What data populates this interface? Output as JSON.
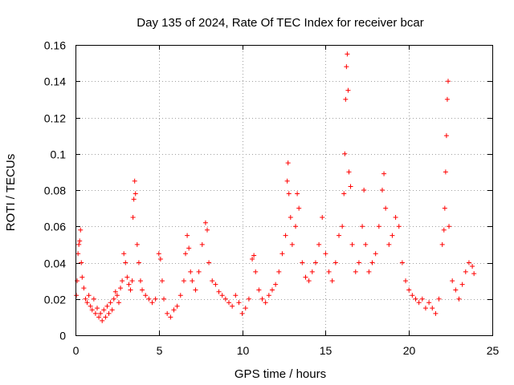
{
  "chart_data": {
    "type": "scatter",
    "title": "Day 135 of 2024, Rate Of TEC Index for receiver bcar",
    "xlabel": "GPS time / hours",
    "ylabel": "ROTI / TECUs",
    "xlim": [
      0,
      25
    ],
    "ylim": [
      0,
      0.16
    ],
    "xticks": [
      0,
      5,
      10,
      15,
      20,
      25
    ],
    "xtick_labels": [
      "0",
      "5",
      "10",
      "15",
      "20",
      "25"
    ],
    "yticks": [
      0,
      0.02,
      0.04,
      0.06,
      0.08,
      0.1,
      0.12,
      0.14,
      0.16
    ],
    "ytick_labels": [
      "0",
      "0.02",
      "0.04",
      "0.06",
      "0.08",
      "0.1",
      "0.12",
      "0.14",
      "0.16"
    ],
    "grid": true,
    "marker": "+",
    "marker_color": "#ff0000",
    "series": [
      {
        "name": "ROTI",
        "points": [
          [
            0.05,
            0.022
          ],
          [
            0.1,
            0.03
          ],
          [
            0.15,
            0.045
          ],
          [
            0.2,
            0.05
          ],
          [
            0.25,
            0.052
          ],
          [
            0.3,
            0.058
          ],
          [
            0.35,
            0.04
          ],
          [
            0.4,
            0.032
          ],
          [
            0.5,
            0.026
          ],
          [
            0.6,
            0.02
          ],
          [
            0.7,
            0.018
          ],
          [
            0.8,
            0.022
          ],
          [
            0.9,
            0.016
          ],
          [
            1.0,
            0.014
          ],
          [
            1.1,
            0.02
          ],
          [
            1.2,
            0.012
          ],
          [
            1.3,
            0.015
          ],
          [
            1.4,
            0.01
          ],
          [
            1.5,
            0.012
          ],
          [
            1.6,
            0.008
          ],
          [
            1.7,
            0.014
          ],
          [
            1.8,
            0.01
          ],
          [
            1.9,
            0.016
          ],
          [
            2.0,
            0.012
          ],
          [
            2.1,
            0.018
          ],
          [
            2.2,
            0.014
          ],
          [
            2.3,
            0.02
          ],
          [
            2.4,
            0.024
          ],
          [
            2.5,
            0.022
          ],
          [
            2.6,
            0.018
          ],
          [
            2.7,
            0.026
          ],
          [
            2.8,
            0.03
          ],
          [
            2.9,
            0.045
          ],
          [
            3.0,
            0.04
          ],
          [
            3.1,
            0.032
          ],
          [
            3.2,
            0.028
          ],
          [
            3.3,
            0.025
          ],
          [
            3.4,
            0.03
          ],
          [
            3.45,
            0.065
          ],
          [
            3.5,
            0.075
          ],
          [
            3.55,
            0.085
          ],
          [
            3.6,
            0.078
          ],
          [
            3.7,
            0.05
          ],
          [
            3.8,
            0.04
          ],
          [
            3.9,
            0.03
          ],
          [
            4.0,
            0.025
          ],
          [
            4.2,
            0.022
          ],
          [
            4.4,
            0.02
          ],
          [
            4.6,
            0.018
          ],
          [
            4.8,
            0.02
          ],
          [
            5.0,
            0.045
          ],
          [
            5.1,
            0.042
          ],
          [
            5.2,
            0.03
          ],
          [
            5.3,
            0.02
          ],
          [
            5.5,
            0.012
          ],
          [
            5.7,
            0.01
          ],
          [
            5.9,
            0.014
          ],
          [
            6.1,
            0.016
          ],
          [
            6.3,
            0.022
          ],
          [
            6.5,
            0.03
          ],
          [
            6.6,
            0.045
          ],
          [
            6.7,
            0.055
          ],
          [
            6.8,
            0.048
          ],
          [
            6.9,
            0.035
          ],
          [
            7.0,
            0.03
          ],
          [
            7.2,
            0.025
          ],
          [
            7.4,
            0.035
          ],
          [
            7.6,
            0.05
          ],
          [
            7.8,
            0.062
          ],
          [
            7.9,
            0.058
          ],
          [
            8.0,
            0.04
          ],
          [
            8.2,
            0.03
          ],
          [
            8.4,
            0.028
          ],
          [
            8.6,
            0.024
          ],
          [
            8.8,
            0.022
          ],
          [
            9.0,
            0.02
          ],
          [
            9.2,
            0.018
          ],
          [
            9.4,
            0.016
          ],
          [
            9.6,
            0.022
          ],
          [
            9.8,
            0.018
          ],
          [
            10.0,
            0.012
          ],
          [
            10.2,
            0.015
          ],
          [
            10.4,
            0.02
          ],
          [
            10.6,
            0.042
          ],
          [
            10.7,
            0.044
          ],
          [
            10.8,
            0.035
          ],
          [
            11.0,
            0.025
          ],
          [
            11.2,
            0.02
          ],
          [
            11.4,
            0.018
          ],
          [
            11.6,
            0.022
          ],
          [
            11.8,
            0.025
          ],
          [
            12.0,
            0.028
          ],
          [
            12.2,
            0.035
          ],
          [
            12.4,
            0.045
          ],
          [
            12.6,
            0.055
          ],
          [
            12.7,
            0.085
          ],
          [
            12.75,
            0.095
          ],
          [
            12.8,
            0.078
          ],
          [
            12.9,
            0.065
          ],
          [
            13.0,
            0.05
          ],
          [
            13.2,
            0.06
          ],
          [
            13.3,
            0.078
          ],
          [
            13.4,
            0.07
          ],
          [
            13.6,
            0.04
          ],
          [
            13.8,
            0.032
          ],
          [
            14.0,
            0.03
          ],
          [
            14.2,
            0.035
          ],
          [
            14.4,
            0.04
          ],
          [
            14.6,
            0.05
          ],
          [
            14.8,
            0.065
          ],
          [
            15.0,
            0.045
          ],
          [
            15.2,
            0.035
          ],
          [
            15.4,
            0.03
          ],
          [
            15.6,
            0.04
          ],
          [
            15.8,
            0.055
          ],
          [
            16.0,
            0.06
          ],
          [
            16.1,
            0.078
          ],
          [
            16.15,
            0.1
          ],
          [
            16.2,
            0.13
          ],
          [
            16.25,
            0.148
          ],
          [
            16.3,
            0.155
          ],
          [
            16.35,
            0.135
          ],
          [
            16.4,
            0.09
          ],
          [
            16.5,
            0.082
          ],
          [
            16.6,
            0.05
          ],
          [
            16.8,
            0.035
          ],
          [
            17.0,
            0.04
          ],
          [
            17.2,
            0.06
          ],
          [
            17.3,
            0.08
          ],
          [
            17.4,
            0.05
          ],
          [
            17.6,
            0.035
          ],
          [
            17.8,
            0.04
          ],
          [
            18.0,
            0.045
          ],
          [
            18.2,
            0.06
          ],
          [
            18.4,
            0.08
          ],
          [
            18.5,
            0.089
          ],
          [
            18.6,
            0.07
          ],
          [
            18.8,
            0.05
          ],
          [
            19.0,
            0.055
          ],
          [
            19.2,
            0.065
          ],
          [
            19.4,
            0.06
          ],
          [
            19.6,
            0.04
          ],
          [
            19.8,
            0.03
          ],
          [
            20.0,
            0.025
          ],
          [
            20.2,
            0.022
          ],
          [
            20.4,
            0.02
          ],
          [
            20.6,
            0.018
          ],
          [
            20.8,
            0.02
          ],
          [
            21.0,
            0.015
          ],
          [
            21.2,
            0.018
          ],
          [
            21.4,
            0.015
          ],
          [
            21.6,
            0.012
          ],
          [
            21.8,
            0.02
          ],
          [
            22.0,
            0.05
          ],
          [
            22.1,
            0.058
          ],
          [
            22.15,
            0.07
          ],
          [
            22.2,
            0.09
          ],
          [
            22.25,
            0.11
          ],
          [
            22.3,
            0.13
          ],
          [
            22.35,
            0.14
          ],
          [
            22.4,
            0.06
          ],
          [
            22.6,
            0.03
          ],
          [
            22.8,
            0.025
          ],
          [
            23.0,
            0.02
          ],
          [
            23.2,
            0.028
          ],
          [
            23.4,
            0.035
          ],
          [
            23.6,
            0.04
          ],
          [
            23.8,
            0.038
          ],
          [
            23.9,
            0.034
          ]
        ]
      }
    ]
  }
}
